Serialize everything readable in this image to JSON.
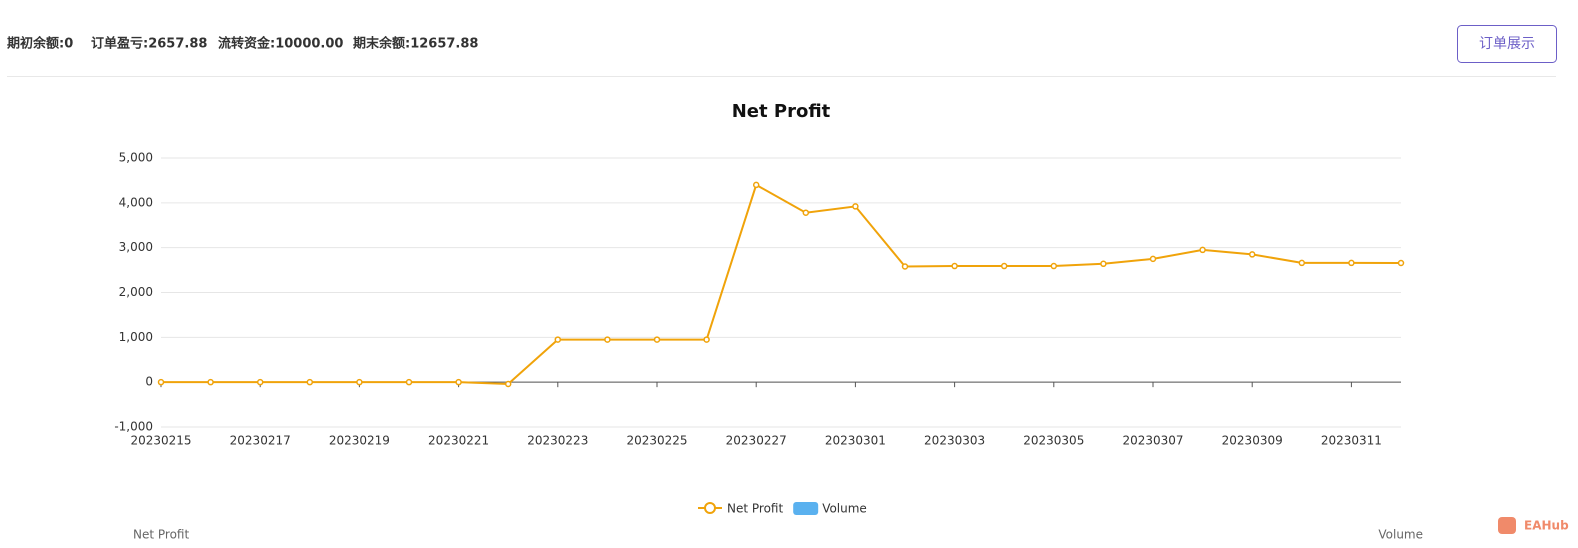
{
  "header": {
    "stats": [
      "期初余额:0",
      "订单盈亏:2657.88",
      "流转资金:10000.00",
      "期末余额:12657.88"
    ],
    "button": "订单展示"
  },
  "chart_data": {
    "type": "line",
    "title": "Net Profit",
    "categories": [
      "20230215",
      null,
      "20230217",
      null,
      "20230219",
      null,
      "20230221",
      null,
      "20230223",
      null,
      "20230225",
      null,
      "20230227",
      null,
      "20230301",
      null,
      "20230303",
      null,
      "20230305",
      null,
      "20230307",
      null,
      "20230309",
      null,
      "20230311",
      null
    ],
    "series": [
      {
        "name": "Net Profit",
        "color": "#f0a30a",
        "values": [
          0,
          0,
          0,
          0,
          0,
          0,
          0,
          -40,
          950,
          950,
          950,
          950,
          4400,
          3780,
          3920,
          2580,
          2590,
          2590,
          2590,
          2640,
          2750,
          2950,
          2850,
          2660,
          2660,
          2658
        ]
      },
      {
        "name": "Volume",
        "color": "#5ab1ef"
      }
    ],
    "ylim": [
      -1000,
      5000
    ],
    "yticks": [
      {
        "value": -1000,
        "label": "-1,000"
      },
      0,
      {
        "value": 1000,
        "label": "1,000"
      },
      {
        "value": 2000,
        "label": "2,000"
      },
      {
        "value": 3000,
        "label": "3,000"
      },
      {
        "value": 4000,
        "label": "4,000"
      },
      {
        "value": 5000,
        "label": "5,000"
      }
    ],
    "grid": true,
    "y_label": "Net Profit",
    "y2_label": "Volume"
  },
  "watermark": "EAHub"
}
